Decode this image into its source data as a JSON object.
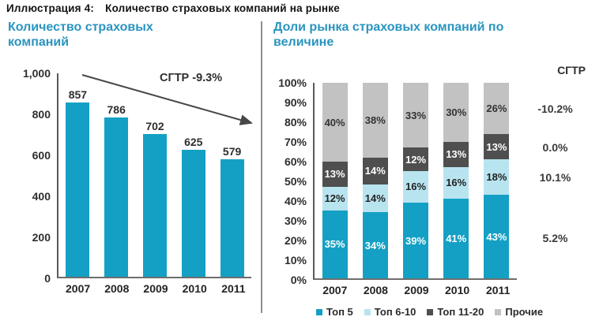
{
  "header": {
    "label": "Иллюстрация 4:",
    "title": "Количество страховых компаний на рынке"
  },
  "chart_data": [
    {
      "type": "bar",
      "title": "Количество страховых компаний",
      "categories": [
        "2007",
        "2008",
        "2009",
        "2010",
        "2011"
      ],
      "values": [
        857,
        786,
        702,
        625,
        579
      ],
      "bar_color": "#14a0c4",
      "ylim": [
        0,
        1000
      ],
      "yticks": [
        {
          "label": "1,000",
          "value": 1000
        },
        {
          "label": "800",
          "value": 800
        },
        {
          "label": "600",
          "value": 600
        },
        {
          "label": "400",
          "value": 400
        },
        {
          "label": "200",
          "value": 200
        },
        {
          "label": "0",
          "value": 0
        }
      ],
      "annotation": "СГТР -9.3%",
      "xlabel": "",
      "ylabel": "",
      "grid": false,
      "legend_position": "none"
    },
    {
      "type": "stacked-bar-100",
      "title": "Доли рынка страховых компаний по величине",
      "categories": [
        "2007",
        "2008",
        "2009",
        "2010",
        "2011"
      ],
      "unit": "%",
      "series": [
        {
          "name": "Топ 5",
          "values": [
            35,
            34,
            39,
            41,
            43
          ],
          "color": "#14a0c4",
          "label_color": "#ffffff",
          "cagr": "5.2%"
        },
        {
          "name": "Топ 6-10",
          "values": [
            12,
            14,
            16,
            16,
            18
          ],
          "color": "#b8e4f0",
          "label_color": "#222222",
          "cagr": "10.1%"
        },
        {
          "name": "Топ 11-20",
          "values": [
            13,
            14,
            12,
            13,
            13
          ],
          "color": "#4f4f4f",
          "label_color": "#ffffff",
          "cagr": "0.0%"
        },
        {
          "name": "Прочие",
          "values": [
            40,
            38,
            33,
            30,
            26
          ],
          "color": "#c2c2c2",
          "label_color": "#333333",
          "cagr": "-10.2%"
        }
      ],
      "ylim": [
        0,
        100
      ],
      "yticks": [
        {
          "label": "100%",
          "value": 100
        },
        {
          "label": "90%",
          "value": 90
        },
        {
          "label": "80%",
          "value": 80
        },
        {
          "label": "70%",
          "value": 70
        },
        {
          "label": "60%",
          "value": 60
        },
        {
          "label": "50%",
          "value": 50
        },
        {
          "label": "40%",
          "value": 40
        },
        {
          "label": "30%",
          "value": 30
        },
        {
          "label": "20%",
          "value": 20
        },
        {
          "label": "10%",
          "value": 10
        },
        {
          "label": "0%",
          "value": 0
        }
      ],
      "cagr_header": "СГТР",
      "grid": false,
      "legend_position": "bottom"
    }
  ]
}
